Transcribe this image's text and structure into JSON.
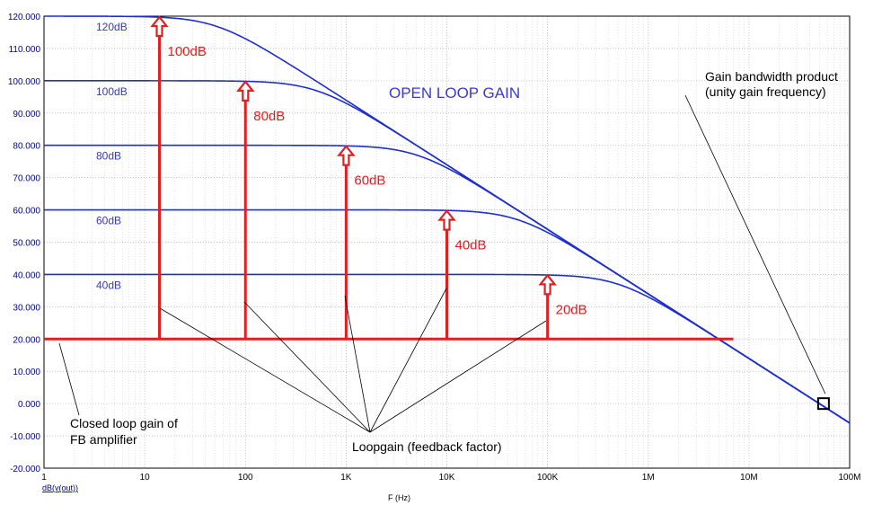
{
  "chart_data": {
    "type": "line",
    "title": "OPEN LOOP GAIN",
    "xlabel": "F (Hz)",
    "ylabel": "dB(v(out))",
    "x_scale": "log",
    "xlim": [
      1,
      100000000
    ],
    "ylim": [
      -20,
      120
    ],
    "x_tick_labels": [
      "1",
      "10",
      "100",
      "1K",
      "10K",
      "100K",
      "1M",
      "10M",
      "100M"
    ],
    "y_tick_labels": [
      "120.000",
      "110.000",
      "100.000",
      "90.000",
      "80.000",
      "70.000",
      "60.000",
      "50.000",
      "40.000",
      "30.000",
      "20.000",
      "10.000",
      "0.000",
      "-10.000",
      "-20.000"
    ],
    "grid": true,
    "series": [
      {
        "name": "120dB",
        "dc_gain": 120,
        "pole_hz": 50,
        "color": "#1e2fd0"
      },
      {
        "name": "100dB",
        "dc_gain": 100,
        "pole_hz": 500,
        "color": "#1e2fd0"
      },
      {
        "name": "80dB",
        "dc_gain": 80,
        "pole_hz": 5000,
        "color": "#1e2fd0"
      },
      {
        "name": "60dB",
        "dc_gain": 60,
        "pole_hz": 50000,
        "color": "#1e2fd0"
      },
      {
        "name": "40dB",
        "dc_gain": 40,
        "pole_hz": 500000,
        "color": "#1e2fd0"
      }
    ],
    "closed_loop_gain": {
      "value": 20,
      "x_end": 7000000,
      "color": "#e02020"
    },
    "loopgain_arrows": [
      {
        "x": 14,
        "top": 120,
        "label": "100dB"
      },
      {
        "x": 100,
        "top": 100,
        "label": "80dB"
      },
      {
        "x": 1000,
        "top": 80,
        "label": "60dB"
      },
      {
        "x": 10000,
        "top": 60,
        "label": "40dB"
      },
      {
        "x": 100000,
        "top": 40,
        "label": "20dB"
      }
    ],
    "unity_gain_marker": {
      "x": 55000000,
      "y": 0
    },
    "annotations": {
      "gbw_line1": "Gain bandwidth product",
      "gbw_line2": "(unity gain frequency)",
      "closed_loop_line1": "Closed loop gain of",
      "closed_loop_line2": "FB amplifier",
      "loopgain": "Loopgain (feedback factor)"
    }
  }
}
